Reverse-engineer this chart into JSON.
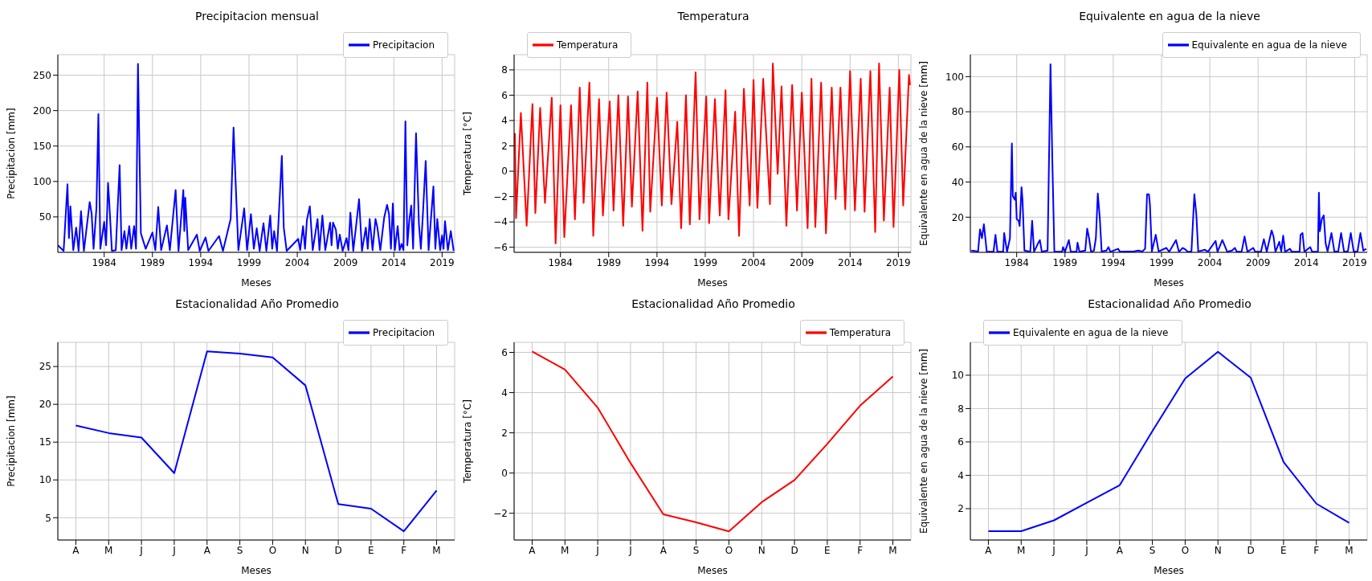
{
  "chart_data": [
    {
      "type": "line",
      "title": "Precipitacion mensual",
      "xlabel": "Meses",
      "ylabel": "Precipitacion [mm]",
      "grid": true,
      "legend": "top right",
      "xlim": [
        1979.2,
        2020.3
      ],
      "xticks": [
        1984,
        1989,
        1994,
        1999,
        2004,
        2009,
        2014,
        2019
      ],
      "ylim": [
        0,
        279
      ],
      "yticks": [
        50,
        100,
        150,
        200,
        250
      ],
      "x": [
        1979.2,
        1979.8,
        1980.2,
        1980.35,
        1980.5,
        1980.8,
        1981.1,
        1981.35,
        1981.6,
        1981.9,
        1982.5,
        1982.7,
        1982.9,
        1983.2,
        1983.4,
        1983.6,
        1984.0,
        1984.2,
        1984.4,
        1984.5,
        1984.8,
        1985.2,
        1985.6,
        1985.8,
        1986.1,
        1986.3,
        1986.6,
        1986.8,
        1987.1,
        1987.3,
        1987.5,
        1987.8,
        1988.3,
        1989.0,
        1989.3,
        1989.6,
        1989.9,
        1990.5,
        1990.8,
        1991.4,
        1991.7,
        1992.2,
        1992.3,
        1992.4,
        1992.7,
        1993.6,
        1993.9,
        1994.5,
        1994.8,
        1995.9,
        1996.3,
        1997.1,
        1997.4,
        1997.6,
        1997.9,
        1998.5,
        1998.8,
        1999.2,
        1999.5,
        1999.8,
        2000.1,
        2000.5,
        2000.8,
        2001.2,
        2001.4,
        2001.6,
        2001.9,
        2002.4,
        2002.6,
        2002.9,
        2004.1,
        2004.3,
        2004.6,
        2004.8,
        2005.0,
        2005.3,
        2005.6,
        2006.1,
        2006.3,
        2006.6,
        2006.9,
        2007.4,
        2007.55,
        2007.7,
        2008.0,
        2008.2,
        2008.4,
        2008.7,
        2009.1,
        2009.3,
        2009.5,
        2009.8,
        2010.4,
        2010.7,
        2011.1,
        2011.3,
        2011.5,
        2011.8,
        2012.1,
        2012.3,
        2012.6,
        2013.0,
        2013.3,
        2013.5,
        2013.7,
        2013.9,
        2014.1,
        2014.4,
        2014.6,
        2014.8,
        2015.0,
        2015.2,
        2015.4,
        2015.6,
        2015.8,
        2016.0,
        2016.3,
        2016.6,
        2016.8,
        2017.0,
        2017.3,
        2017.6,
        2018.1,
        2018.3,
        2018.5,
        2018.8,
        2019.0,
        2019.15,
        2019.3,
        2019.6,
        2019.9,
        2020.2
      ],
      "series": [
        {
          "name": "Precipitacion",
          "color": "#0000ff",
          "values": [
            10,
            2,
            96,
            20,
            65,
            3,
            35,
            2,
            58,
            2,
            71,
            55,
            5,
            63,
            195,
            5,
            43,
            10,
            98,
            77,
            2,
            3,
            123,
            3,
            30,
            5,
            37,
            5,
            37,
            5,
            266,
            27,
            5,
            28,
            3,
            64,
            3,
            38,
            3,
            88,
            2,
            88,
            30,
            77,
            3,
            25,
            2,
            21,
            2,
            23,
            2,
            47,
            176,
            104,
            3,
            62,
            3,
            54,
            5,
            34,
            2,
            41,
            2,
            52,
            5,
            30,
            2,
            136,
            35,
            2,
            19,
            3,
            37,
            5,
            46,
            65,
            3,
            47,
            3,
            52,
            3,
            42,
            10,
            42,
            32,
            5,
            25,
            2,
            20,
            3,
            56,
            2,
            75,
            2,
            35,
            5,
            47,
            3,
            47,
            35,
            3,
            49,
            67,
            54,
            5,
            69,
            3,
            37,
            3,
            12,
            3,
            185,
            10,
            45,
            66,
            5,
            168,
            40,
            5,
            51,
            129,
            3,
            93,
            5,
            47,
            3,
            24,
            5,
            44,
            3,
            30,
            2
          ]
        }
      ]
    },
    {
      "type": "line",
      "title": "Temperatura",
      "xlabel": "Meses",
      "ylabel": "Temperatura [°C]",
      "grid": true,
      "legend": "top left",
      "xlim": [
        1979.2,
        2020.3
      ],
      "xticks": [
        1984,
        1989,
        1994,
        1999,
        2004,
        2009,
        2014,
        2019
      ],
      "ylim": [
        -6.4,
        9.2
      ],
      "yticks": [
        -6,
        -4,
        -2,
        0,
        2,
        4,
        6,
        8
      ],
      "x": [
        1979.28,
        1979.4,
        1979.9,
        1980.5,
        1981.1,
        1981.4,
        1981.9,
        1982.4,
        1983.1,
        1983.5,
        1984.0,
        1984.4,
        1985.1,
        1985.5,
        1986.0,
        1986.4,
        1987.0,
        1987.4,
        1988.0,
        1988.4,
        1989.1,
        1989.5,
        1990.0,
        1990.5,
        1991.0,
        1991.4,
        1992.0,
        1992.5,
        1993.0,
        1993.3,
        1994.0,
        1994.5,
        1995.0,
        1995.5,
        1996.1,
        1996.5,
        1997.0,
        1997.4,
        1998.0,
        1998.4,
        1999.1,
        1999.4,
        2000.0,
        2000.5,
        2001.1,
        2001.4,
        2002.1,
        2002.5,
        2003.0,
        2003.6,
        2004.0,
        2004.4,
        2005.0,
        2005.7,
        2006.0,
        2006.5,
        2006.9,
        2007.4,
        2008.0,
        2008.5,
        2009.0,
        2009.6,
        2010.0,
        2010.4,
        2011.0,
        2011.5,
        2012.1,
        2012.5,
        2013.0,
        2013.5,
        2014.0,
        2014.5,
        2015.1,
        2015.5,
        2016.1,
        2016.6,
        2017.0,
        2017.5,
        2018.1,
        2018.5,
        2019.1,
        2019.5,
        2020.1,
        2020.2
      ],
      "series": [
        {
          "name": "Temperatura",
          "color": "#ff0000",
          "values": [
            3,
            -3.7,
            4.6,
            -4.3,
            5.3,
            -3.3,
            5.0,
            -2.5,
            5.8,
            -5.7,
            5.2,
            -5.2,
            5.2,
            -3.8,
            6.6,
            -2.5,
            7.0,
            -5.1,
            5.7,
            -3.5,
            5.5,
            -3.1,
            6.0,
            -4.3,
            5.9,
            -2.8,
            6.3,
            -4.7,
            7.0,
            -3.2,
            5.8,
            -2.7,
            6.2,
            -2.6,
            3.9,
            -4.5,
            6.0,
            -4.2,
            7.8,
            -3.8,
            5.9,
            -4.1,
            5.7,
            -3.5,
            6.4,
            -3.8,
            4.7,
            -5.1,
            6.5,
            -2.7,
            7.2,
            -2.9,
            7.3,
            -2.6,
            8.5,
            -0.2,
            6.7,
            -4.3,
            6.8,
            -3.1,
            6.2,
            -4.5,
            7.3,
            -4.4,
            7.0,
            -4.9,
            6.6,
            -2.2,
            6.6,
            -3.0,
            7.9,
            -3.1,
            7.3,
            -3.2,
            7.9,
            -4.8,
            8.5,
            -3.9,
            6.6,
            -4.4,
            8.0,
            -2.7,
            7.6,
            6.8
          ]
        }
      ]
    },
    {
      "type": "line",
      "title": "Equivalente en agua de la nieve",
      "xlabel": "Meses",
      "ylabel": "Equivalente en agua de la nieve [mm]",
      "grid": true,
      "legend": "top right",
      "xlim": [
        1979.2,
        2020.3
      ],
      "xticks": [
        1984,
        1989,
        1994,
        1999,
        2004,
        2009,
        2014,
        2019
      ],
      "ylim": [
        0,
        112.5
      ],
      "yticks": [
        20,
        40,
        60,
        80,
        100
      ],
      "x": [
        1979.3,
        1980.0,
        1980.2,
        1980.4,
        1980.6,
        1980.9,
        1981.6,
        1981.8,
        1982.0,
        1982.6,
        1982.7,
        1983.0,
        1983.3,
        1983.5,
        1983.6,
        1983.8,
        1983.9,
        1984.0,
        1984.2,
        1984.3,
        1984.5,
        1984.6,
        1984.8,
        1985.4,
        1985.6,
        1985.8,
        1986.2,
        1986.4,
        1986.6,
        1987.2,
        1987.5,
        1987.7,
        1987.9,
        1988.7,
        1988.8,
        1989.0,
        1989.4,
        1989.6,
        1990.2,
        1990.3,
        1990.5,
        1991.1,
        1991.3,
        1991.5,
        1991.7,
        1992.0,
        1992.2,
        1992.4,
        1992.6,
        1992.8,
        1993.3,
        1993.5,
        1993.7,
        1994.5,
        1994.7,
        1995.4,
        1996.1,
        1996.6,
        1997.0,
        1997.3,
        1997.5,
        1997.7,
        1997.8,
        1998.0,
        1998.4,
        1998.7,
        1999.5,
        1999.8,
        2000.5,
        2000.8,
        2001.2,
        2001.5,
        2001.7,
        2002.1,
        2002.4,
        2002.6,
        2002.8,
        2003.5,
        2003.8,
        2004.6,
        2004.8,
        2005.3,
        2005.6,
        2005.8,
        2006.3,
        2006.6,
        2006.8,
        2007.3,
        2007.6,
        2007.9,
        2008.5,
        2008.7,
        2009.3,
        2009.6,
        2009.9,
        2010.4,
        2010.6,
        2010.8,
        2011.2,
        2011.4,
        2011.6,
        2011.8,
        2012.3,
        2012.5,
        2013.3,
        2013.4,
        2013.6,
        2013.8,
        2014.4,
        2014.6,
        2015.2,
        2015.3,
        2015.4,
        2015.6,
        2015.8,
        2016.0,
        2016.2,
        2016.6,
        2016.9,
        2017.3,
        2017.6,
        2017.9,
        2018.3,
        2018.6,
        2018.9,
        2019.3,
        2019.6,
        2019.9,
        2020.2
      ],
      "series": [
        {
          "name": "Equivalente en agua de la nieve",
          "color": "#0000ff",
          "values": [
            1,
            0.5,
            13,
            8,
            16,
            0.3,
            0.3,
            10,
            0.3,
            0.3,
            11,
            0.3,
            8,
            62,
            32,
            30,
            34,
            19,
            18,
            15,
            37,
            30,
            1,
            0.3,
            18,
            0.3,
            5,
            7,
            0.3,
            1,
            107,
            50,
            0.5,
            0.3,
            3,
            0.3,
            7,
            0.3,
            0.3,
            5.5,
            0.3,
            1,
            13.5,
            8,
            0.3,
            1,
            8,
            33.5,
            20,
            0.5,
            1,
            3,
            0.3,
            2,
            0.3,
            0.5,
            0.5,
            1,
            0.5,
            2,
            33,
            33,
            27,
            0.5,
            10,
            0.5,
            2.5,
            0.3,
            7,
            0.3,
            2.5,
            1.5,
            0.3,
            0.5,
            33,
            22,
            0.5,
            1.5,
            0.3,
            6.5,
            0.3,
            7,
            3,
            0.3,
            1,
            2.5,
            0.3,
            0.5,
            9,
            0.3,
            2.5,
            0.3,
            0.3,
            7.5,
            0.3,
            12.5,
            9,
            0.3,
            6,
            0.5,
            9.5,
            0.3,
            2,
            0.3,
            0.3,
            10,
            11,
            0.3,
            3,
            0.3,
            0.5,
            34,
            12,
            19,
            21,
            5,
            0.5,
            11,
            0.5,
            0.5,
            11,
            0.5,
            0.5,
            11,
            0.5,
            0.5,
            11,
            1,
            2
          ]
        }
      ]
    },
    {
      "type": "line",
      "title": "Estacionalidad Año Promedio",
      "xlabel": "Meses",
      "ylabel": "Precipitacion [mm]",
      "grid": true,
      "legend": "top right",
      "categories": [
        "A",
        "M",
        "J",
        "J",
        "A",
        "S",
        "O",
        "N",
        "D",
        "E",
        "F",
        "M"
      ],
      "ylim": [
        2.05,
        28.2
      ],
      "yticks": [
        5,
        10,
        15,
        20,
        25
      ],
      "series": [
        {
          "name": "Precipitacion",
          "color": "#0000ff",
          "values": [
            17.2,
            16.2,
            15.6,
            10.9,
            27.0,
            26.7,
            26.2,
            22.5,
            6.8,
            6.2,
            3.2,
            8.6
          ]
        }
      ]
    },
    {
      "type": "line",
      "title": "Estacionalidad Año Promedio",
      "xlabel": "Meses",
      "ylabel": "Temperatura [°C]",
      "grid": true,
      "legend": "top right",
      "categories": [
        "A",
        "M",
        "J",
        "J",
        "A",
        "S",
        "O",
        "N",
        "D",
        "E",
        "F",
        "M"
      ],
      "ylim": [
        -3.33,
        6.5
      ],
      "yticks": [
        -2,
        0,
        2,
        4,
        6
      ],
      "series": [
        {
          "name": "Temperatura",
          "color": "#ff0000",
          "values": [
            6.05,
            5.15,
            3.25,
            0.5,
            -2.05,
            -2.45,
            -2.9,
            -1.45,
            -0.35,
            1.45,
            3.35,
            4.8
          ]
        }
      ]
    },
    {
      "type": "line",
      "title": "Estacionalidad Año Promedio",
      "xlabel": "Meses",
      "ylabel": "Equivalente en agua de la nieve [mm]",
      "grid": true,
      "legend": "top left",
      "categories": [
        "A",
        "M",
        "J",
        "J",
        "A",
        "S",
        "O",
        "N",
        "D",
        "E",
        "F",
        "M"
      ],
      "ylim": [
        0.12,
        11.97
      ],
      "yticks": [
        2,
        4,
        6,
        8,
        10
      ],
      "series": [
        {
          "name": "Equivalente en agua de la nieve",
          "color": "#0000ff",
          "values": [
            0.65,
            0.65,
            1.3,
            2.35,
            3.4,
            6.65,
            9.8,
            11.4,
            9.85,
            4.8,
            2.3,
            1.15
          ]
        }
      ]
    }
  ]
}
